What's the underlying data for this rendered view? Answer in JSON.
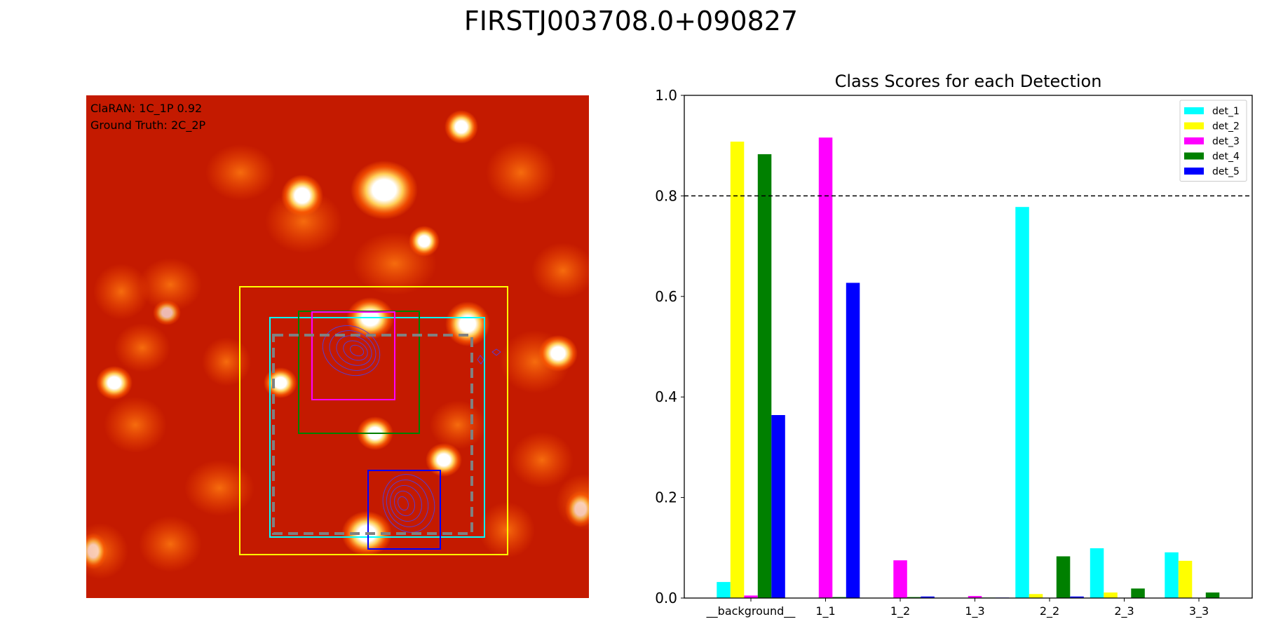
{
  "figure_title": "FIRSTJ003708.0+090827",
  "image_panel": {
    "prediction_text": "ClaRAN: 1C_1P 0.92",
    "ground_truth_text": "Ground Truth: 2C_2P",
    "colors": {
      "background": "#c41a00",
      "box_det_1": "#00ffff",
      "box_det_2": "#ffff00",
      "box_det_3": "#ff00ff",
      "box_det_4": "#008000",
      "box_det_5": "#0000ff",
      "box_ground_truth": "#808080",
      "contour": "#5a3ccf"
    }
  },
  "chart_data": {
    "type": "bar",
    "title": "Class Scores for each Detection",
    "xlabel": "",
    "ylabel": "",
    "ylim": [
      0,
      1.0
    ],
    "yticks": [
      0.0,
      0.2,
      0.4,
      0.6,
      0.8,
      1.0
    ],
    "categories": [
      "__background__",
      "1_1",
      "1_2",
      "1_3",
      "2_2",
      "2_3",
      "3_3"
    ],
    "threshold": 0.8,
    "threshold_style": "dashed",
    "legend_position": "top-right",
    "series": [
      {
        "name": "det_1",
        "color": "#00ffff",
        "values": [
          0.032,
          0.0,
          0.0,
          0.0,
          0.778,
          0.099,
          0.091
        ]
      },
      {
        "name": "det_2",
        "color": "#ffff00",
        "values": [
          0.908,
          0.0,
          0.0,
          0.0,
          0.008,
          0.011,
          0.074
        ]
      },
      {
        "name": "det_3",
        "color": "#ff00ff",
        "values": [
          0.005,
          0.916,
          0.075,
          0.004,
          0.0,
          0.0,
          0.0
        ]
      },
      {
        "name": "det_4",
        "color": "#008000",
        "values": [
          0.883,
          0.002,
          0.002,
          0.001,
          0.083,
          0.019,
          0.011
        ]
      },
      {
        "name": "det_5",
        "color": "#0000ff",
        "values": [
          0.364,
          0.627,
          0.003,
          0.001,
          0.003,
          0.0,
          0.0
        ]
      }
    ]
  }
}
